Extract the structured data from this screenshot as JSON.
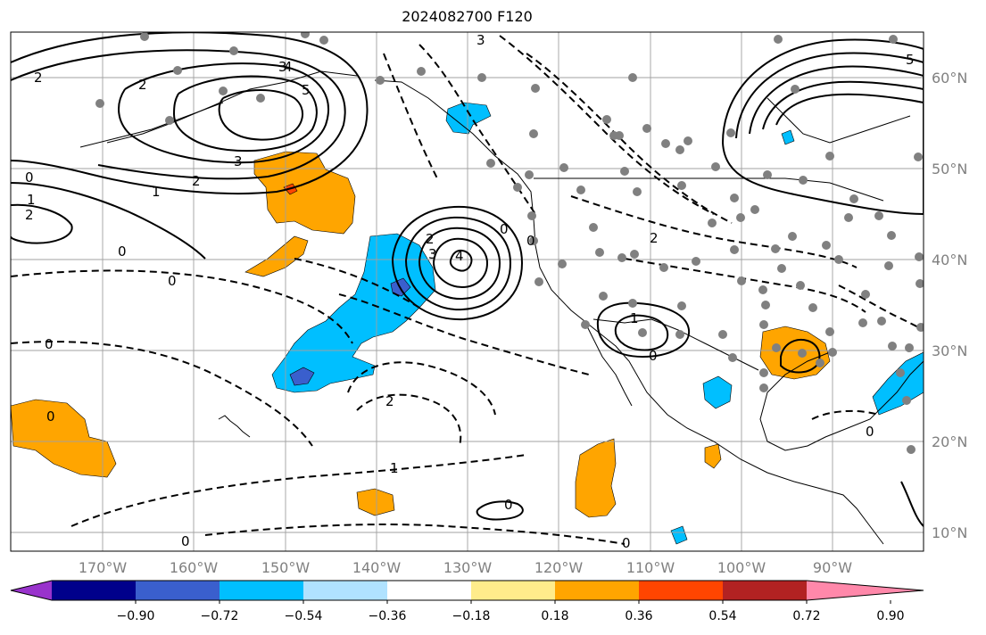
{
  "title": "2024082700 F120",
  "longitude_labels": [
    "170°W",
    "160°W",
    "150°W",
    "140°W",
    "130°W",
    "120°W",
    "110°W",
    "100°W",
    "90°W"
  ],
  "latitude_labels": [
    "60°N",
    "50°N",
    "40°N",
    "30°N",
    "20°N",
    "10°N"
  ],
  "contour_labels": [
    "2",
    "2",
    "3",
    "1",
    "2",
    "0",
    "1",
    "2",
    "3",
    "4",
    "5",
    "0",
    "0",
    "0",
    "0",
    "2",
    "1",
    "0",
    "0",
    "2",
    "3",
    "4",
    "0",
    "1",
    "0",
    "0",
    "2",
    "3",
    "5",
    "0",
    "0"
  ],
  "colorbar": {
    "tick_labels": [
      "−0.90",
      "−0.72",
      "−0.54",
      "−0.36",
      "−0.18",
      "0.18",
      "0.36",
      "0.54",
      "0.72",
      "0.90"
    ],
    "colors": [
      "#9933cc",
      "#00008b",
      "#3a5fcd",
      "#00bfff",
      "#b0e2ff",
      "#ffffff",
      "#ffec8b",
      "#ffa500",
      "#ff4500",
      "#b22222",
      "#ff88aa"
    ]
  }
}
